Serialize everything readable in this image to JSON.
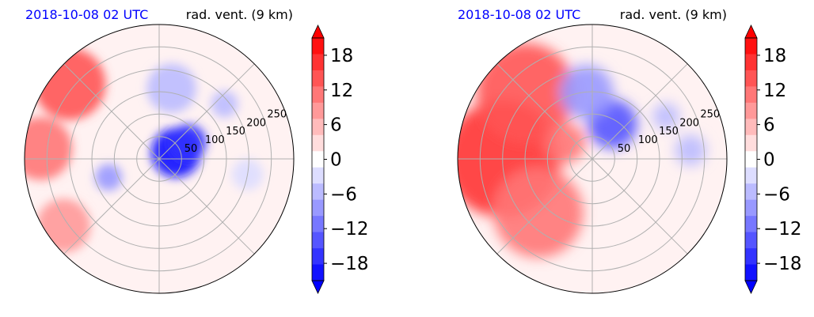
{
  "chart_data": [
    {
      "type": "heatmap",
      "projection": "polar",
      "title_left": "2018-10-08 02 UTC",
      "title_right": "rad. vent. (9 km)",
      "radial_ticks": [
        50,
        100,
        150,
        200,
        250
      ],
      "radial_max": 300,
      "grid": true,
      "angular_gridlines_deg": [
        0,
        45,
        90,
        135,
        180,
        225,
        270,
        315
      ],
      "colorbar": {
        "ticks": [
          "18",
          "12",
          "6",
          "0",
          "−6",
          "−12",
          "−18"
        ],
        "vmin": -21,
        "vmax": 21,
        "levels": 15,
        "extend": "both",
        "low_color": "#0000ff",
        "mid_color": "#ffffff",
        "high_color": "#ff0000"
      },
      "patches": [
        {
          "label": "inner negative core",
          "value": -20,
          "theta": 20,
          "r": 40,
          "size": 55
        },
        {
          "label": "inner negative NE",
          "value": -16,
          "theta": 30,
          "r": 75,
          "size": 40
        },
        {
          "label": "north negative band",
          "value": -6,
          "theta": 80,
          "r": 160,
          "size": 55
        },
        {
          "label": "north-west positive arc",
          "value": 14,
          "theta": 140,
          "r": 260,
          "size": 80
        },
        {
          "label": "west positive arc",
          "value": 12,
          "theta": 175,
          "r": 265,
          "size": 70
        },
        {
          "label": "south-west positive",
          "value": 8,
          "theta": 215,
          "r": 260,
          "size": 60
        },
        {
          "label": "south-west negative",
          "value": -8,
          "theta": 200,
          "r": 120,
          "size": 30
        },
        {
          "label": "north-east negative",
          "value": -5,
          "theta": 40,
          "r": 190,
          "size": 30
        },
        {
          "label": "east negative",
          "value": -4,
          "theta": 350,
          "r": 200,
          "size": 35
        }
      ]
    },
    {
      "type": "heatmap",
      "projection": "polar",
      "title_left": "2018-10-08 02 UTC",
      "title_right": "rad. vent. (9 km)",
      "radial_ticks": [
        50,
        100,
        150,
        200,
        250
      ],
      "radial_max": 300,
      "grid": true,
      "angular_gridlines_deg": [
        0,
        45,
        90,
        135,
        180,
        225,
        270,
        315
      ],
      "colorbar": {
        "ticks": [
          "18",
          "12",
          "6",
          "0",
          "−6",
          "−12",
          "−18"
        ],
        "vmin": -21,
        "vmax": 21,
        "levels": 15,
        "extend": "both",
        "low_color": "#0000ff",
        "mid_color": "#ffffff",
        "high_color": "#ff0000"
      },
      "patches": [
        {
          "label": "west positive sector",
          "value": 16,
          "theta": 180,
          "r": 200,
          "size": 130
        },
        {
          "label": "north-west positive sector",
          "value": 15,
          "theta": 135,
          "r": 210,
          "size": 110
        },
        {
          "label": "south-west positive sector",
          "value": 11,
          "theta": 225,
          "r": 170,
          "size": 100
        },
        {
          "label": "inner positive",
          "value": 10,
          "theta": 150,
          "r": 70,
          "size": 45
        },
        {
          "label": "north negative core",
          "value": -14,
          "theta": 60,
          "r": 90,
          "size": 55
        },
        {
          "label": "north negative band",
          "value": -9,
          "theta": 95,
          "r": 150,
          "size": 60
        },
        {
          "label": "east negative",
          "value": -7,
          "theta": 5,
          "r": 220,
          "size": 35
        },
        {
          "label": "east-north-east negative",
          "value": -5,
          "theta": 30,
          "r": 190,
          "size": 30
        }
      ]
    }
  ]
}
